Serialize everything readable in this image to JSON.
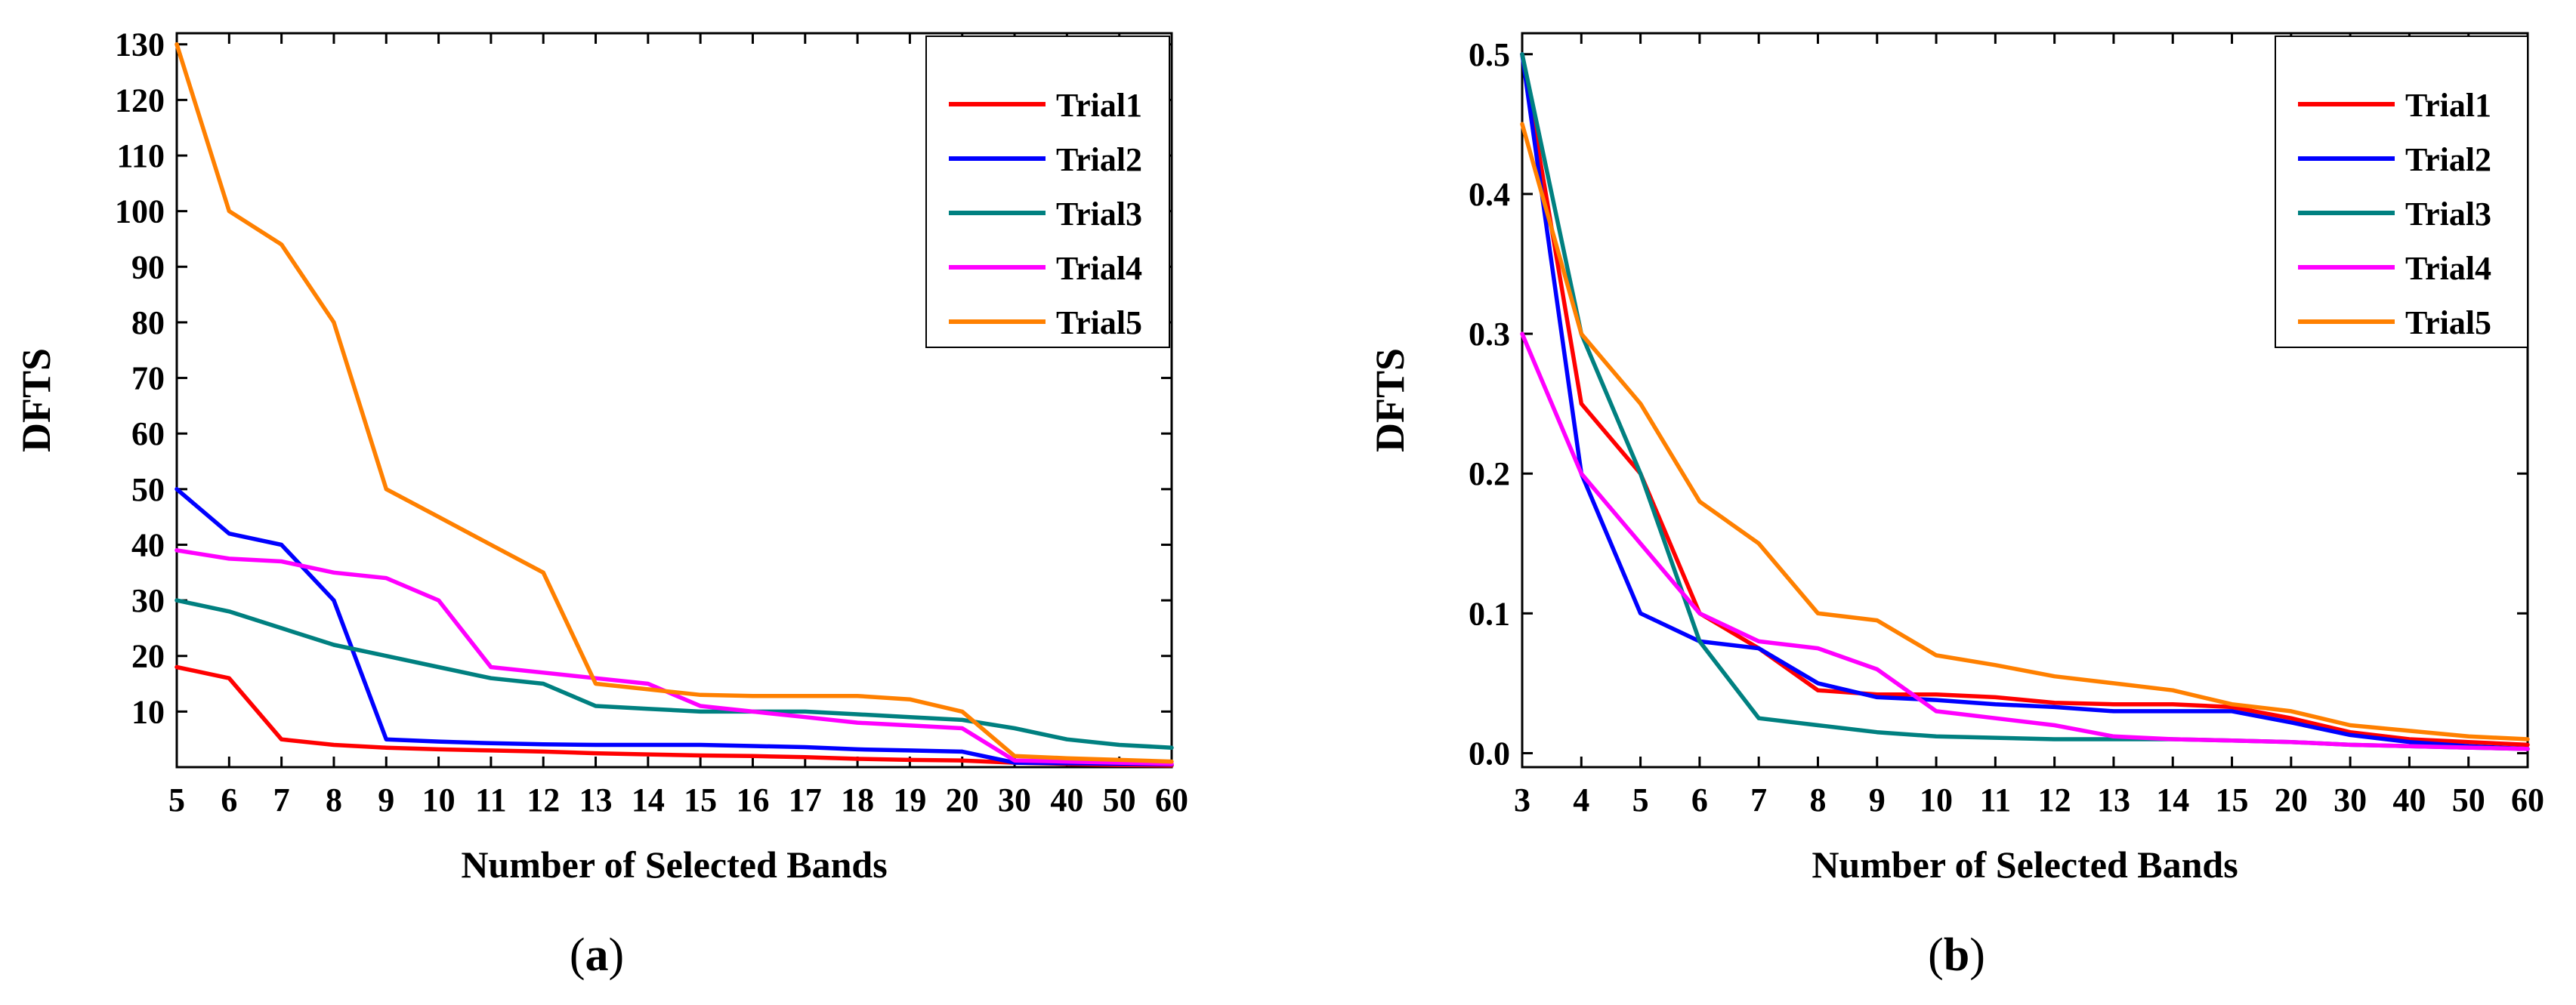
{
  "chart_data": [
    {
      "type": "line",
      "caption": "a",
      "xlabel": "Number of Selected Bands",
      "ylabel": "DFTS",
      "categories": [
        "5",
        "6",
        "7",
        "8",
        "9",
        "10",
        "11",
        "12",
        "13",
        "14",
        "15",
        "16",
        "17",
        "18",
        "19",
        "20",
        "30",
        "40",
        "50",
        "60"
      ],
      "yticks": [
        10,
        20,
        30,
        40,
        50,
        60,
        70,
        80,
        90,
        100,
        110,
        120,
        130
      ],
      "ylim": [
        0,
        132
      ],
      "legend": "top-right",
      "series": [
        {
          "name": "Trial1",
          "color": "#ff0000",
          "values": [
            18,
            16,
            5,
            4,
            3.5,
            3.2,
            3,
            2.8,
            2.5,
            2.3,
            2.1,
            2,
            1.8,
            1.5,
            1.3,
            1.2,
            0.8,
            0.6,
            0.4,
            0.3
          ]
        },
        {
          "name": "Trial2",
          "color": "#0000ff",
          "values": [
            50,
            42,
            40,
            30,
            5,
            4.6,
            4.3,
            4.1,
            4,
            4,
            4,
            3.8,
            3.6,
            3.2,
            3,
            2.8,
            0.8,
            0.7,
            0.6,
            0.5
          ]
        },
        {
          "name": "Trial3",
          "color": "#008080",
          "values": [
            30,
            28,
            25,
            22,
            20,
            18,
            16,
            15,
            11,
            10.5,
            10,
            10,
            10,
            9.5,
            9,
            8.5,
            7,
            5,
            4,
            3.5
          ]
        },
        {
          "name": "Trial4",
          "color": "#ff00ff",
          "values": [
            39,
            37.5,
            37,
            35,
            34,
            30,
            18,
            17,
            16,
            15,
            11,
            10,
            9,
            8,
            7.5,
            7,
            1.2,
            1,
            0.8,
            0.6
          ]
        },
        {
          "name": "Trial5",
          "color": "#ff8000",
          "values": [
            130,
            100,
            94,
            80,
            50,
            45,
            40,
            35,
            15,
            14,
            13,
            12.8,
            12.8,
            12.8,
            12.2,
            10,
            2,
            1.6,
            1.3,
            1
          ]
        }
      ]
    },
    {
      "type": "line",
      "caption": "b",
      "xlabel": "Number of Selected Bands",
      "ylabel": "DFTS",
      "categories": [
        "3",
        "4",
        "5",
        "6",
        "7",
        "8",
        "9",
        "10",
        "11",
        "12",
        "13",
        "14",
        "15",
        "20",
        "30",
        "40",
        "50",
        "60"
      ],
      "yticks": [
        "0.0",
        "0.1",
        "0.2",
        "0.3",
        "0.4",
        "0.5"
      ],
      "ylim": [
        -0.01,
        0.515
      ],
      "legend": "top-right",
      "series": [
        {
          "name": "Trial1",
          "color": "#ff0000",
          "values": [
            0.5,
            0.25,
            0.2,
            0.1,
            0.075,
            0.045,
            0.042,
            0.042,
            0.04,
            0.036,
            0.035,
            0.035,
            0.033,
            0.025,
            0.015,
            0.01,
            0.008,
            0.006
          ]
        },
        {
          "name": "Trial2",
          "color": "#0000ff",
          "values": [
            0.5,
            0.2,
            0.1,
            0.08,
            0.075,
            0.05,
            0.04,
            0.038,
            0.035,
            0.033,
            0.03,
            0.03,
            0.03,
            0.022,
            0.013,
            0.008,
            0.005,
            0.003
          ]
        },
        {
          "name": "Trial3",
          "color": "#008080",
          "values": [
            0.5,
            0.3,
            0.2,
            0.08,
            0.025,
            0.02,
            0.015,
            0.012,
            0.011,
            0.01,
            0.01,
            0.01,
            0.009,
            0.008,
            0.006,
            0.005,
            0.004,
            0.003
          ]
        },
        {
          "name": "Trial4",
          "color": "#ff00ff",
          "values": [
            0.3,
            0.2,
            0.15,
            0.1,
            0.08,
            0.075,
            0.06,
            0.03,
            0.025,
            0.02,
            0.012,
            0.01,
            0.009,
            0.008,
            0.006,
            0.005,
            0.004,
            0.003
          ]
        },
        {
          "name": "Trial5",
          "color": "#ff8000",
          "values": [
            0.45,
            0.3,
            0.25,
            0.18,
            0.15,
            0.1,
            0.095,
            0.07,
            0.063,
            0.055,
            0.05,
            0.045,
            0.035,
            0.03,
            0.02,
            0.016,
            0.012,
            0.01
          ]
        }
      ]
    }
  ]
}
